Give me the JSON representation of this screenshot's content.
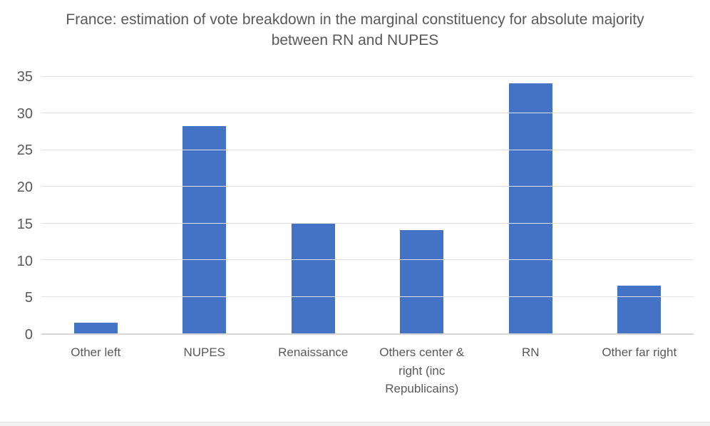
{
  "chart_data": {
    "type": "bar",
    "title": "France: estimation of vote breakdown in the marginal constituency for absolute majority between RN and NUPES",
    "categories": [
      "Other left",
      "NUPES",
      "Renaissance",
      "Others center & right (inc Republicains)",
      "RN",
      "Other far right"
    ],
    "values": [
      1.5,
      28.3,
      15.1,
      14.1,
      34.1,
      6.5
    ],
    "xlabel": "",
    "ylabel": "",
    "ylim": [
      0,
      35
    ],
    "yticks": [
      0,
      5,
      10,
      15,
      20,
      25,
      30,
      35
    ],
    "grid": true,
    "legend": false,
    "layout_hints": {
      "legend_position": "none",
      "orientation": "vertical"
    },
    "colors": {
      "bar_fill": "#4472C4",
      "text": "#595959",
      "gridline": "#e2e2e2",
      "axis_line": "#d6d6d6",
      "bottom_strip": "#f1f1f1"
    }
  }
}
